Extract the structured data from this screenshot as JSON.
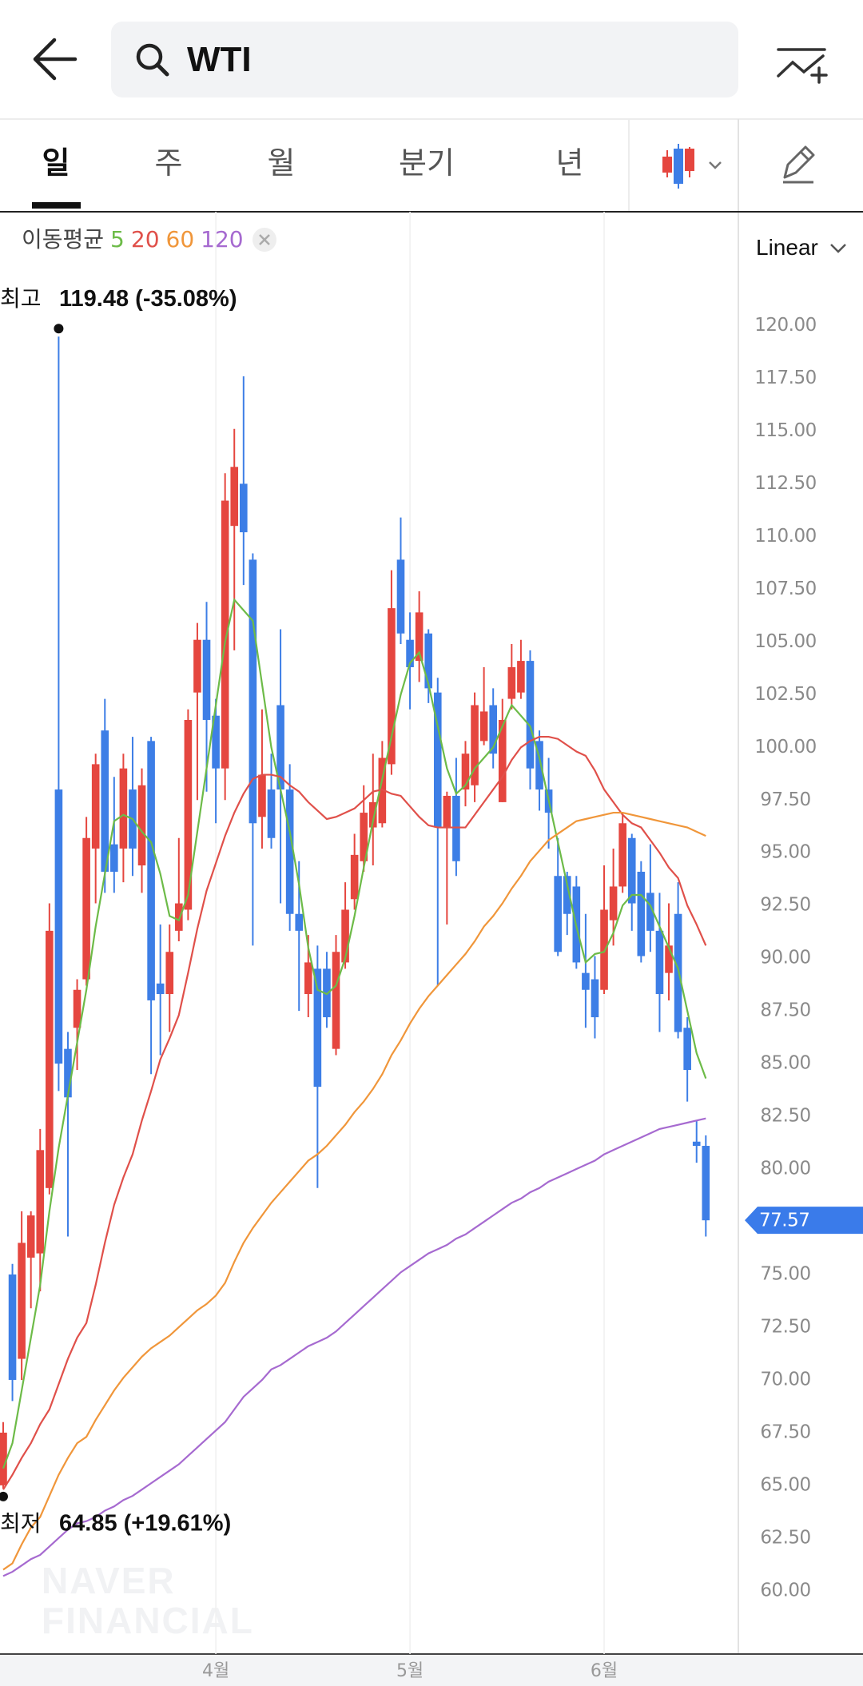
{
  "header": {
    "search": "WTI"
  },
  "tabs": [
    "일",
    "주",
    "월",
    "분기",
    "년"
  ],
  "watermark": [
    "NAVER",
    "FINANCIAL"
  ],
  "chart_data": {
    "type": "candlestick",
    "legend_title": "이동평균",
    "scale": "Linear",
    "up_color": "#e5463f",
    "down_color": "#3d7ee6",
    "last_color": "#3a7bea",
    "categories": [
      null,
      null,
      null,
      null,
      null,
      null,
      null,
      null,
      null,
      null,
      null,
      null,
      null,
      null,
      null,
      null,
      null,
      null,
      null,
      null,
      null,
      null,
      null,
      "4월",
      null,
      null,
      null,
      null,
      null,
      null,
      null,
      null,
      null,
      null,
      null,
      null,
      null,
      null,
      null,
      null,
      null,
      null,
      null,
      null,
      "5월",
      null,
      null,
      null,
      null,
      null,
      null,
      null,
      null,
      null,
      null,
      null,
      null,
      null,
      null,
      null,
      null,
      null,
      null,
      null,
      null,
      "6월",
      null,
      null,
      null,
      null,
      null,
      null,
      null,
      null,
      null,
      null,
      null
    ],
    "open": [
      65.0,
      75.0,
      71.0,
      75.8,
      76.0,
      79.1,
      98.0,
      85.7,
      86.7,
      89.0,
      95.2,
      100.8,
      95.4,
      95.2,
      98.0,
      94.4,
      100.3,
      88.8,
      88.3,
      91.3,
      92.3,
      102.6,
      105.1,
      101.5,
      99.0,
      110.5,
      112.5,
      108.9,
      96.7,
      98.0,
      102.0,
      98.0,
      92.1,
      88.3,
      89.5,
      89.5,
      85.7,
      89.8,
      92.8,
      94.6,
      96.2,
      96.4,
      99.2,
      108.9,
      105.1,
      104.1,
      105.4,
      102.6,
      96.2,
      97.7,
      98.0,
      98.2,
      100.3,
      102.0,
      97.4,
      102.3,
      102.6,
      104.1,
      100.3,
      98.0,
      93.9,
      93.9,
      93.4,
      89.3,
      89.0,
      88.5,
      91.8,
      93.4,
      95.7,
      94.1,
      93.1,
      91.3,
      89.3,
      92.1,
      86.7,
      81.3,
      81.1
    ],
    "high": [
      68.0,
      75.5,
      78.0,
      78.0,
      81.9,
      92.6,
      119.48,
      86.5,
      89.0,
      96.7,
      99.7,
      102.3,
      98.6,
      99.7,
      100.5,
      99.0,
      100.5,
      91.6,
      91.6,
      95.7,
      101.8,
      105.9,
      106.9,
      102.3,
      113.0,
      115.1,
      117.6,
      109.2,
      101.8,
      99.7,
      105.6,
      99.2,
      94.6,
      91.1,
      90.6,
      90.3,
      91.1,
      93.6,
      95.9,
      98.2,
      99.7,
      100.3,
      108.4,
      110.9,
      106.4,
      107.4,
      105.6,
      103.3,
      97.9,
      99.5,
      100.3,
      102.6,
      103.8,
      102.8,
      102.3,
      104.9,
      105.1,
      104.6,
      100.8,
      99.5,
      95.7,
      94.1,
      93.9,
      92.1,
      90.1,
      94.4,
      95.2,
      96.9,
      95.9,
      94.6,
      95.4,
      93.1,
      92.6,
      93.6,
      87.2,
      82.3,
      81.6
    ],
    "low": [
      64.85,
      69.0,
      70.0,
      73.4,
      74.2,
      78.8,
      83.7,
      76.8,
      84.7,
      88.7,
      92.6,
      93.1,
      93.1,
      93.6,
      93.9,
      93.1,
      84.5,
      85.4,
      86.5,
      90.8,
      91.8,
      97.5,
      97.9,
      96.4,
      97.5,
      104.6,
      107.7,
      90.6,
      95.2,
      95.2,
      92.6,
      91.3,
      87.5,
      87.2,
      79.1,
      86.7,
      85.4,
      89.5,
      92.3,
      94.1,
      94.4,
      96.2,
      98.7,
      104.9,
      101.8,
      103.1,
      102.1,
      88.7,
      91.6,
      93.9,
      97.2,
      97.4,
      100.1,
      99.0,
      97.4,
      101.8,
      102.3,
      98.0,
      97.0,
      95.2,
      90.1,
      91.1,
      89.5,
      86.7,
      86.2,
      88.3,
      90.6,
      93.1,
      91.3,
      89.8,
      90.3,
      86.5,
      88.0,
      86.2,
      83.2,
      80.3,
      76.8
    ],
    "close": [
      67.5,
      70.0,
      76.5,
      77.8,
      80.9,
      91.3,
      85.0,
      83.4,
      88.5,
      95.7,
      99.2,
      94.1,
      94.1,
      99.0,
      95.2,
      98.2,
      88.0,
      88.3,
      90.3,
      92.6,
      101.3,
      105.1,
      101.3,
      99.0,
      111.7,
      113.3,
      110.2,
      96.4,
      98.7,
      95.7,
      98.0,
      92.1,
      91.3,
      89.8,
      83.9,
      87.2,
      90.3,
      92.3,
      94.9,
      96.9,
      97.4,
      99.5,
      106.6,
      105.4,
      103.8,
      106.4,
      102.8,
      96.2,
      97.7,
      94.6,
      99.7,
      102.0,
      101.7,
      99.7,
      101.3,
      103.8,
      104.1,
      99.0,
      98.0,
      96.9,
      90.3,
      92.1,
      89.8,
      88.5,
      87.2,
      92.3,
      93.4,
      96.4,
      92.6,
      90.1,
      91.3,
      88.3,
      90.6,
      86.5,
      84.7,
      81.1,
      77.57
    ],
    "series": [
      {
        "name": "5",
        "color": "#6dbb48",
        "values": [
          65.8,
          67,
          69.5,
          72,
          74.5,
          78,
          81,
          83.5,
          86,
          88.5,
          91.5,
          94,
          96.5,
          96.8,
          96.6,
          96,
          95.5,
          94,
          92,
          91.8,
          93,
          96,
          99,
          102,
          105,
          107,
          106.5,
          106,
          103,
          100,
          98,
          96,
          93.5,
          90.5,
          88.5,
          88.3,
          88.7,
          90,
          92,
          94.3,
          96.5,
          98.5,
          100.5,
          102.5,
          104,
          104.5,
          103,
          101,
          99,
          97.8,
          98.2,
          99,
          99.5,
          100,
          101,
          102,
          101.5,
          101,
          99.5,
          97.5,
          95.5,
          93.5,
          91.5,
          89.8,
          90.2,
          90.3,
          91.2,
          92.5,
          93,
          93,
          92.5,
          91.5,
          90.5,
          89.5,
          87.5,
          85.5,
          84.3
        ]
      },
      {
        "name": "20",
        "color": "#e0504a",
        "values": [
          64.8,
          65.5,
          66.3,
          67,
          67.9,
          68.6,
          69.8,
          71,
          72,
          72.7,
          74.5,
          76.5,
          78.3,
          79.6,
          80.7,
          82.3,
          83.7,
          85.2,
          86.2,
          87.3,
          89.3,
          91.4,
          93.2,
          94.5,
          95.8,
          96.9,
          97.8,
          98.5,
          98.7,
          98.7,
          98.6,
          98.2,
          97.9,
          97.4,
          97.0,
          96.6,
          96.7,
          96.9,
          97.1,
          97.5,
          97.9,
          98.0,
          97.8,
          97.7,
          97.2,
          96.7,
          96.3,
          96.2,
          96.2,
          96.2,
          96.2,
          96.8,
          97.4,
          98.0,
          98.6,
          99.4,
          100.0,
          100.3,
          100.5,
          100.5,
          100.4,
          100.1,
          99.8,
          99.6,
          98.9,
          98.0,
          97.4,
          96.8,
          96.4,
          96.2,
          95.6,
          95.0,
          94.3,
          93.8,
          92.5,
          91.6,
          90.6
        ]
      },
      {
        "name": "60",
        "color": "#f0963a",
        "values": [
          61.0,
          61.3,
          62.2,
          63.0,
          63.5,
          64.5,
          65.5,
          66.3,
          67.0,
          67.3,
          68.1,
          68.8,
          69.5,
          70.1,
          70.6,
          71.1,
          71.5,
          71.8,
          72.1,
          72.5,
          72.9,
          73.3,
          73.6,
          74.0,
          74.6,
          75.6,
          76.5,
          77.2,
          77.8,
          78.4,
          78.9,
          79.4,
          79.9,
          80.4,
          80.7,
          81.1,
          81.6,
          82.1,
          82.7,
          83.2,
          83.8,
          84.5,
          85.4,
          86.1,
          86.9,
          87.6,
          88.2,
          88.7,
          89.2,
          89.7,
          90.2,
          90.8,
          91.5,
          92.0,
          92.6,
          93.3,
          93.9,
          94.6,
          95.1,
          95.6,
          95.9,
          96.2,
          96.5,
          96.6,
          96.7,
          96.8,
          96.9,
          96.9,
          96.8,
          96.7,
          96.6,
          96.5,
          96.4,
          96.3,
          96.2,
          96.0,
          95.8
        ]
      },
      {
        "name": "120",
        "color": "#a66ad0",
        "values": [
          60.7,
          60.9,
          61.2,
          61.5,
          61.7,
          62.1,
          62.5,
          62.9,
          63.2,
          63.3,
          63.5,
          63.8,
          64.0,
          64.3,
          64.5,
          64.8,
          65.1,
          65.4,
          65.7,
          66.0,
          66.4,
          66.8,
          67.2,
          67.6,
          68.0,
          68.6,
          69.2,
          69.6,
          70.0,
          70.5,
          70.7,
          71.0,
          71.3,
          71.6,
          71.8,
          72.0,
          72.3,
          72.7,
          73.1,
          73.5,
          73.9,
          74.3,
          74.7,
          75.1,
          75.4,
          75.7,
          76.0,
          76.2,
          76.4,
          76.7,
          76.9,
          77.2,
          77.5,
          77.8,
          78.1,
          78.4,
          78.6,
          78.9,
          79.1,
          79.4,
          79.6,
          79.8,
          80.0,
          80.2,
          80.4,
          80.7,
          80.9,
          81.1,
          81.3,
          81.5,
          81.7,
          81.9,
          82.0,
          82.1,
          82.2,
          82.3,
          82.4
        ]
      }
    ],
    "ylim": [
      57,
      125.4
    ],
    "yticks": [
      {
        "value": 60,
        "label": "60.00"
      },
      {
        "value": 62.5,
        "label": "62.50"
      },
      {
        "value": 65,
        "label": "65.00"
      },
      {
        "value": 67.5,
        "label": "67.50"
      },
      {
        "value": 70,
        "label": "70.00"
      },
      {
        "value": 72.5,
        "label": "72.50"
      },
      {
        "value": 75,
        "label": "75.00"
      },
      {
        "value": 77.5,
        "label": "77.50"
      },
      {
        "value": 80,
        "label": "80.00"
      },
      {
        "value": 82.5,
        "label": "82.50"
      },
      {
        "value": 85,
        "label": "85.00"
      },
      {
        "value": 87.5,
        "label": "87.50"
      },
      {
        "value": 90,
        "label": "90.00"
      },
      {
        "value": 92.5,
        "label": "92.50"
      },
      {
        "value": 95,
        "label": "95.00"
      },
      {
        "value": 97.5,
        "label": "97.50"
      },
      {
        "value": 100,
        "label": "100.00"
      },
      {
        "value": 102.5,
        "label": "102.50"
      },
      {
        "value": 105,
        "label": "105.00"
      },
      {
        "value": 107.5,
        "label": "107.50"
      },
      {
        "value": 110,
        "label": "110.00"
      },
      {
        "value": 112.5,
        "label": "112.50"
      },
      {
        "value": 115,
        "label": "115.00"
      },
      {
        "value": 117.5,
        "label": "117.50"
      },
      {
        "value": 120,
        "label": "120.00"
      }
    ],
    "annotations": [
      {
        "label": "최고",
        "text": "119.48 (-35.08%)"
      },
      {
        "label": "최저",
        "text": "64.85 (+19.61%)"
      }
    ]
  }
}
